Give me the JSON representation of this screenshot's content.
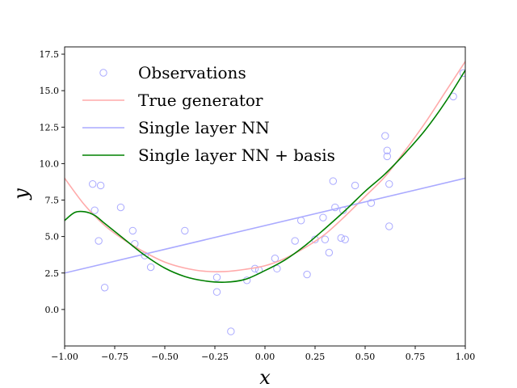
{
  "chart_data": {
    "type": "scatter",
    "title": "",
    "xlabel": "x",
    "ylabel": "y",
    "xlim": [
      -1.0,
      1.0
    ],
    "ylim": [
      -2.5,
      18.0
    ],
    "x_ticks": [
      -1.0,
      -0.75,
      -0.5,
      -0.25,
      0.0,
      0.25,
      0.5,
      0.75,
      1.0
    ],
    "x_tick_labels": [
      "−1.00",
      "−0.75",
      "−0.50",
      "−0.25",
      "0.00",
      "0.25",
      "0.50",
      "0.75",
      "1.00"
    ],
    "y_ticks": [
      0.0,
      2.5,
      5.0,
      7.5,
      10.0,
      12.5,
      15.0,
      17.5
    ],
    "y_tick_labels": [
      "0.0",
      "2.5",
      "5.0",
      "7.5",
      "10.0",
      "12.5",
      "15.0",
      "17.5"
    ],
    "grid": false,
    "legend_position": "top-left",
    "series": [
      {
        "name": "Observations",
        "kind": "scatter",
        "marker": "open-circle",
        "color": "#aaaaff",
        "x": [
          -0.86,
          -0.85,
          -0.82,
          -0.83,
          -0.8,
          -0.72,
          -0.66,
          -0.65,
          -0.6,
          -0.57,
          -0.4,
          -0.24,
          -0.24,
          -0.17,
          -0.09,
          -0.05,
          -0.03,
          0.05,
          0.06,
          0.15,
          0.18,
          0.21,
          0.25,
          0.29,
          0.3,
          0.32,
          0.34,
          0.35,
          0.38,
          0.39,
          0.4,
          0.45,
          0.53,
          0.6,
          0.61,
          0.61,
          0.62,
          0.62,
          0.94,
          0.99
        ],
        "y": [
          8.6,
          6.8,
          8.5,
          4.7,
          1.5,
          7.0,
          5.4,
          4.5,
          3.7,
          2.9,
          5.4,
          2.2,
          1.2,
          -1.5,
          2.0,
          2.8,
          2.7,
          3.5,
          2.8,
          4.7,
          6.1,
          2.4,
          4.8,
          6.3,
          4.8,
          3.9,
          8.8,
          7.0,
          4.9,
          6.8,
          4.8,
          8.5,
          7.3,
          11.9,
          10.9,
          10.5,
          8.6,
          5.7,
          14.6,
          16.2
        ]
      },
      {
        "name": "True generator",
        "kind": "line",
        "color": "#ffaaaa",
        "x": [
          -1.0,
          -0.9,
          -0.8,
          -0.7,
          -0.6,
          -0.5,
          -0.4,
          -0.3,
          -0.2,
          -0.1,
          0.0,
          0.1,
          0.2,
          0.3,
          0.4,
          0.5,
          0.6,
          0.7,
          0.8,
          0.9,
          1.0
        ],
        "y": [
          9.0,
          7.16,
          5.76,
          4.74,
          3.92,
          3.25,
          2.84,
          2.62,
          2.6,
          2.75,
          3.0,
          3.5,
          4.24,
          5.16,
          6.4,
          7.75,
          9.12,
          10.9,
          12.8,
          14.9,
          17.0
        ]
      },
      {
        "name": "Single layer NN",
        "kind": "line",
        "color": "#aaaaff",
        "x": [
          -1.0,
          1.0
        ],
        "y": [
          2.5,
          9.0
        ]
      },
      {
        "name": "Single layer NN + basis",
        "kind": "line",
        "color": "#008000",
        "x": [
          -1.0,
          -0.95,
          -0.9,
          -0.85,
          -0.8,
          -0.7,
          -0.6,
          -0.5,
          -0.4,
          -0.3,
          -0.2,
          -0.1,
          0.0,
          0.1,
          0.2,
          0.3,
          0.4,
          0.5,
          0.6,
          0.7,
          0.8,
          0.9,
          1.0
        ],
        "y": [
          6.1,
          6.65,
          6.7,
          6.45,
          5.9,
          4.8,
          3.72,
          2.84,
          2.26,
          1.96,
          1.87,
          2.06,
          2.67,
          3.4,
          4.38,
          5.55,
          6.78,
          8.1,
          9.3,
          10.72,
          12.3,
          14.2,
          16.4
        ]
      }
    ]
  }
}
